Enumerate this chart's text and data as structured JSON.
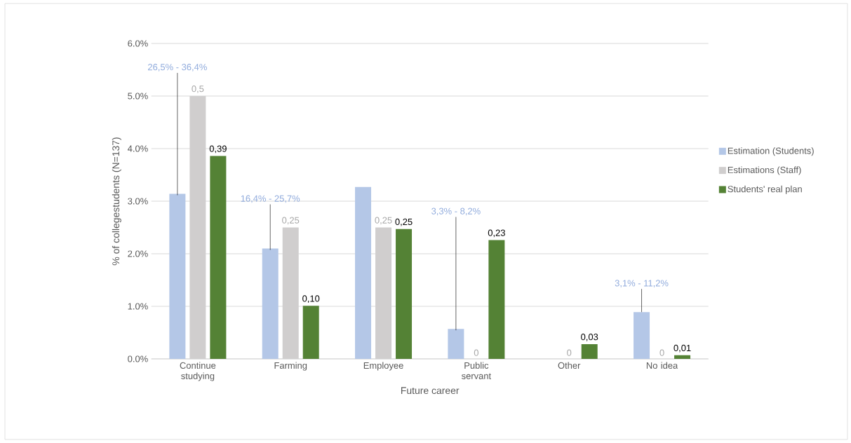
{
  "chart_data": {
    "type": "bar",
    "xlabel": "Future career",
    "ylabel": "% of collegestudents (N=137)",
    "categories": [
      "Continue studying",
      "Farming",
      "Employee",
      "Public servant",
      "Other",
      "No idea"
    ],
    "series": [
      {
        "name": "Estimation (Students)",
        "color": "#b4c7e7",
        "values": [
          3.14,
          2.1,
          3.27,
          0.57,
          null,
          0.89
        ]
      },
      {
        "name": "Estimations (Staff)",
        "color": "#d0cece",
        "values": [
          5.0,
          2.5,
          2.5,
          0,
          0,
          0
        ]
      },
      {
        "name": "Students' real plan",
        "color": "#548235",
        "values": [
          3.86,
          1.01,
          2.47,
          2.26,
          0.28,
          0.07
        ]
      }
    ],
    "annotations": [
      {
        "text": "26,5% - 36,4%",
        "y": 3.14
      },
      {
        "text": "16,4% - 25,7%",
        "y": 2.1
      },
      {
        "text": "3,3% - 8,2%",
        "y": 0.57
      },
      {
        "text": "3,1% - 11,2%",
        "y": 0.89
      },
      "0,5",
      "0,25",
      "0,25",
      "0",
      "0",
      "0",
      "0,39",
      "0,10",
      "0,25",
      "0,23",
      "0,03",
      "0,01"
    ],
    "ylim": [
      0,
      6
    ],
    "yticks": [
      {
        "value": 0,
        "label": "0.0%"
      },
      {
        "value": 1,
        "label": "1.0%"
      },
      {
        "value": 2,
        "label": "2.0%"
      },
      {
        "value": 3,
        "label": "3.0%"
      },
      {
        "value": 4,
        "label": "4.0%"
      },
      {
        "value": 5,
        "label": "5.0%"
      },
      {
        "value": 6,
        "label": "6.0%"
      }
    ],
    "grid": "y",
    "legend": "right"
  }
}
